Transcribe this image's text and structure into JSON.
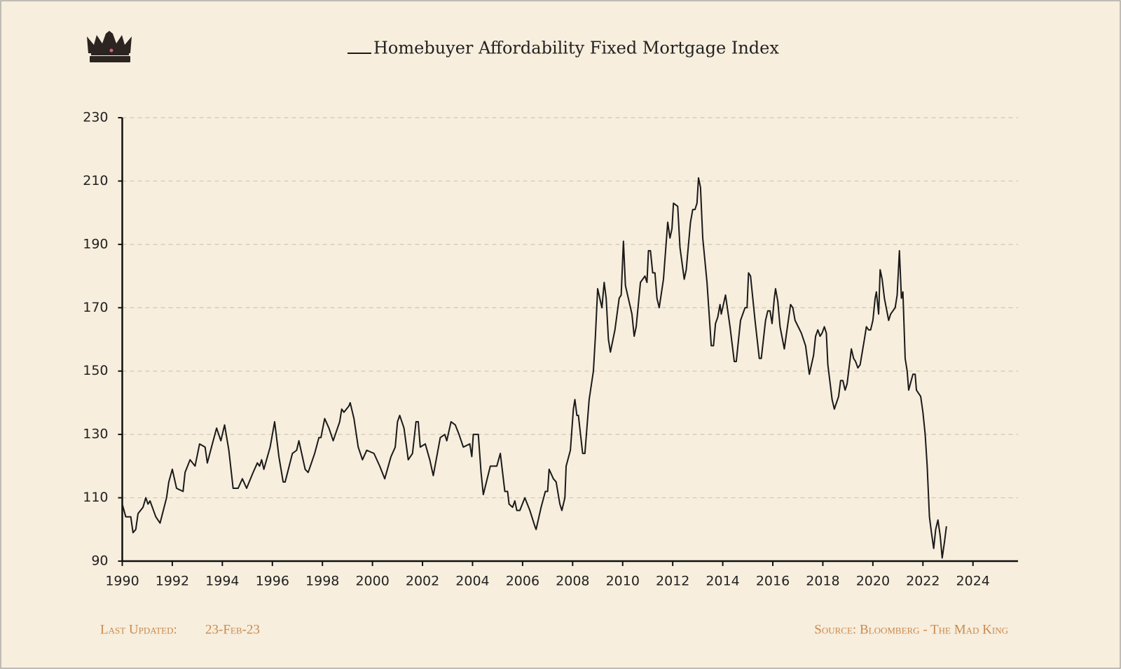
{
  "chart_data": {
    "type": "line",
    "series": [
      {
        "name": "Homebuyer Affordability Fixed Mortgage Index",
        "color": "#1a1a1a",
        "values": [
          108,
          104,
          104,
          99,
          100,
          105,
          107,
          110,
          108,
          109,
          104,
          102,
          110,
          115,
          119,
          113,
          112,
          118,
          122,
          120,
          127,
          126,
          121,
          127,
          132,
          128,
          133,
          125,
          113,
          113,
          116,
          113,
          118,
          121,
          120,
          122,
          119,
          126,
          134,
          123,
          115,
          115,
          124,
          125,
          128,
          119,
          118,
          124,
          129,
          129,
          135,
          132,
          128,
          134,
          138,
          137,
          139,
          140,
          135,
          126,
          122,
          125,
          124,
          120,
          116,
          123,
          126,
          134,
          136,
          132,
          122,
          124,
          134,
          134,
          126,
          127,
          122,
          117,
          129,
          130,
          128,
          134,
          133,
          130,
          126,
          127,
          123,
          130,
          130,
          118,
          111,
          120,
          120,
          124,
          112,
          112,
          108,
          107,
          109,
          106,
          106,
          110,
          106,
          101,
          100,
          107,
          112,
          112,
          119,
          116,
          115,
          108,
          106,
          110,
          120,
          125,
          138,
          141,
          136,
          136,
          124,
          124,
          141,
          150,
          161,
          176,
          170,
          178,
          173,
          160,
          156,
          163,
          173,
          174,
          191,
          177,
          168,
          161,
          164,
          178,
          180,
          178,
          188,
          188,
          181,
          181,
          173,
          170,
          179,
          197,
          192,
          195,
          203,
          202,
          189,
          179,
          182,
          197,
          201,
          201,
          203,
          211,
          208,
          192,
          178,
          158,
          158,
          165,
          167,
          171,
          168,
          174,
          164,
          153,
          153,
          166,
          170,
          170,
          181,
          180,
          166,
          154,
          154,
          166,
          169,
          169,
          165,
          173,
          176,
          172,
          164,
          157,
          171,
          170,
          166,
          162,
          158,
          149,
          155,
          161,
          163,
          161,
          162,
          164,
          162,
          152,
          141,
          138,
          142,
          147,
          147,
          144,
          146,
          157,
          154,
          153,
          151,
          152,
          160,
          164,
          163,
          163,
          166,
          173,
          175,
          168,
          182,
          179,
          173,
          166,
          168,
          170,
          174,
          188,
          173,
          175,
          154,
          150,
          144,
          149,
          149,
          144,
          142,
          137,
          130,
          120,
          104,
          99,
          94,
          100,
          103,
          98,
          91,
          96,
          101
        ]
      }
    ],
    "x": [
      1990.0,
      1990.14,
      1990.34,
      1990.43,
      1990.54,
      1990.63,
      1990.83,
      1990.94,
      1991.03,
      1991.11,
      1991.34,
      1991.51,
      1991.77,
      1991.86,
      1992.0,
      1992.17,
      1992.43,
      1992.51,
      1992.71,
      1992.91,
      1993.09,
      1993.31,
      1993.4,
      1993.6,
      1993.77,
      1993.94,
      1994.09,
      1994.26,
      1994.43,
      1994.63,
      1994.8,
      1994.97,
      1995.23,
      1995.4,
      1995.49,
      1995.57,
      1995.66,
      1995.91,
      1996.09,
      1996.26,
      1996.43,
      1996.51,
      1996.8,
      1996.97,
      1997.06,
      1997.31,
      1997.43,
      1997.69,
      1997.86,
      1997.94,
      1998.09,
      1998.26,
      1998.43,
      1998.69,
      1998.77,
      1998.86,
      1999.06,
      1999.11,
      1999.26,
      1999.43,
      1999.6,
      1999.77,
      2000.06,
      2000.29,
      2000.49,
      2000.74,
      2000.91,
      2001.0,
      2001.09,
      2001.26,
      2001.43,
      2001.6,
      2001.74,
      2001.83,
      2001.91,
      2002.11,
      2002.29,
      2002.43,
      2002.71,
      2002.89,
      2002.97,
      2003.14,
      2003.31,
      2003.46,
      2003.63,
      2003.89,
      2003.97,
      2004.03,
      2004.23,
      2004.34,
      2004.43,
      2004.71,
      2004.97,
      2005.11,
      2005.29,
      2005.4,
      2005.46,
      2005.6,
      2005.69,
      2005.77,
      2005.89,
      2006.09,
      2006.29,
      2006.49,
      2006.54,
      2006.74,
      2006.91,
      2007.0,
      2007.06,
      2007.23,
      2007.34,
      2007.49,
      2007.57,
      2007.69,
      2007.74,
      2007.91,
      2008.03,
      2008.09,
      2008.17,
      2008.23,
      2008.4,
      2008.49,
      2008.66,
      2008.83,
      2008.91,
      2009.0,
      2009.17,
      2009.26,
      2009.34,
      2009.43,
      2009.51,
      2009.69,
      2009.86,
      2009.94,
      2010.03,
      2010.11,
      2010.37,
      2010.46,
      2010.54,
      2010.71,
      2010.89,
      2010.97,
      2011.03,
      2011.11,
      2011.2,
      2011.29,
      2011.37,
      2011.46,
      2011.63,
      2011.8,
      2011.89,
      2011.97,
      2012.03,
      2012.2,
      2012.29,
      2012.46,
      2012.54,
      2012.71,
      2012.8,
      2012.89,
      2012.97,
      2013.03,
      2013.11,
      2013.2,
      2013.37,
      2013.54,
      2013.63,
      2013.71,
      2013.8,
      2013.89,
      2013.94,
      2014.11,
      2014.29,
      2014.46,
      2014.54,
      2014.71,
      2014.89,
      2014.97,
      2015.03,
      2015.11,
      2015.29,
      2015.46,
      2015.54,
      2015.71,
      2015.8,
      2015.89,
      2015.97,
      2016.06,
      2016.11,
      2016.2,
      2016.29,
      2016.46,
      2016.71,
      2016.8,
      2016.89,
      2017.14,
      2017.31,
      2017.46,
      2017.63,
      2017.71,
      2017.8,
      2017.89,
      2017.97,
      2018.06,
      2018.14,
      2018.2,
      2018.37,
      2018.46,
      2018.63,
      2018.71,
      2018.8,
      2018.89,
      2018.97,
      2019.14,
      2019.23,
      2019.31,
      2019.4,
      2019.49,
      2019.66,
      2019.74,
      2019.83,
      2019.91,
      2020.0,
      2020.09,
      2020.14,
      2020.23,
      2020.29,
      2020.37,
      2020.46,
      2020.63,
      2020.71,
      2020.89,
      2020.97,
      2021.06,
      2021.14,
      2021.2,
      2021.29,
      2021.37,
      2021.43,
      2021.6,
      2021.69,
      2021.74,
      2021.91,
      2022.0,
      2022.09,
      2022.17,
      2022.26,
      2022.34,
      2022.43,
      2022.51,
      2022.6,
      2022.69,
      2022.77,
      2022.86,
      2022.94
    ],
    "xlim": [
      1990,
      2025.8
    ],
    "xticks": [
      1990,
      1992,
      1994,
      1996,
      1998,
      2000,
      2002,
      2004,
      2006,
      2008,
      2010,
      2012,
      2014,
      2016,
      2018,
      2020,
      2022,
      2024
    ],
    "ylim": [
      90,
      230
    ],
    "yticks": [
      90,
      110,
      130,
      150,
      170,
      190,
      210,
      230
    ],
    "grid": true,
    "legend": "top",
    "annotations": [
      "Last Updated:",
      "23-Feb-23",
      "Source: Bloomberg - The Mad King"
    ]
  }
}
